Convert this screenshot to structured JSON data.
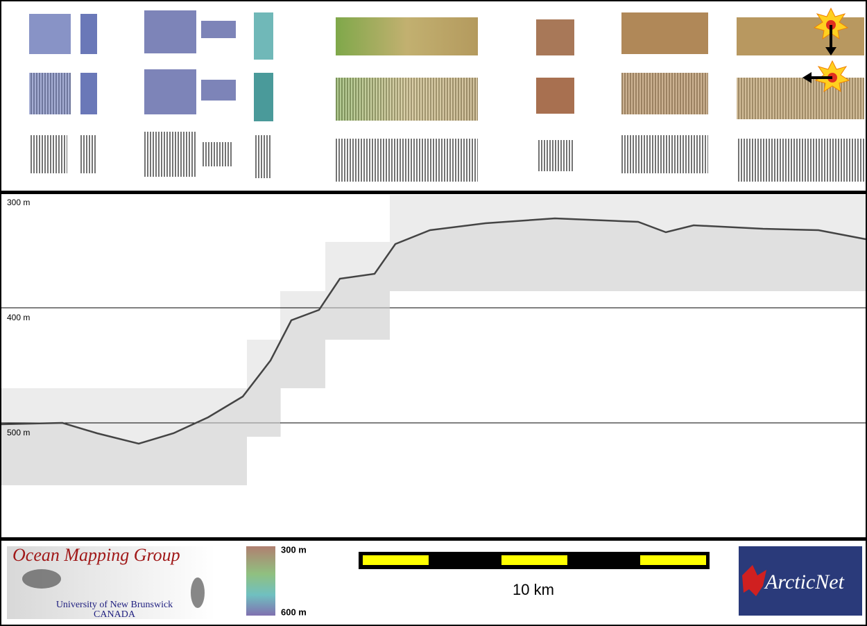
{
  "profile": {
    "depth_labels": [
      "300 m",
      "400 m",
      "500 m"
    ]
  },
  "legend": {
    "colorbar_top": "300 m",
    "colorbar_bottom": "600 m"
  },
  "scale_bar": {
    "label": "10 km"
  },
  "logos": {
    "omg_title": "Ocean Mapping Group",
    "omg_university": "University of New Brunswick",
    "omg_country": "CANADA",
    "arcticnet": "ArcticNet"
  }
}
